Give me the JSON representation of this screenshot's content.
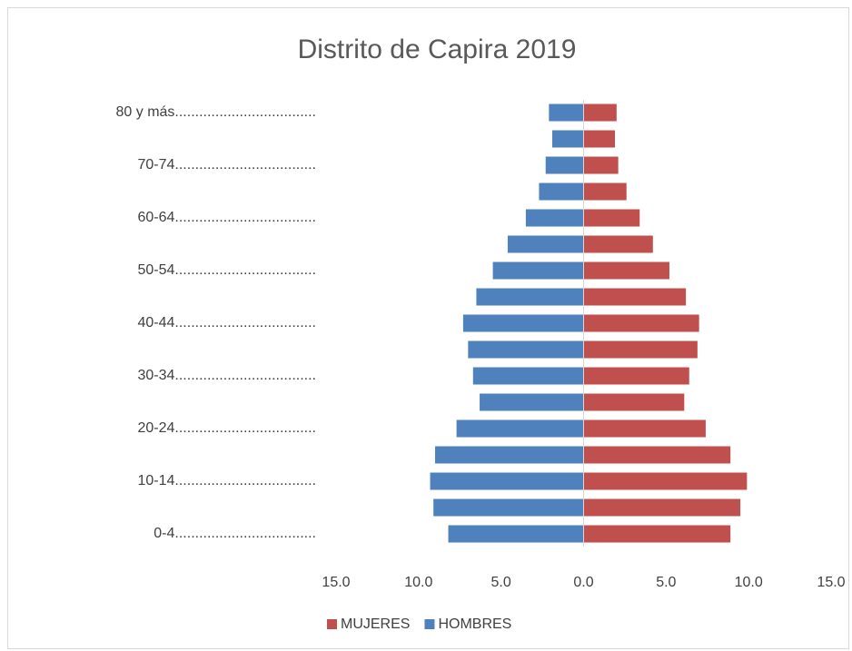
{
  "chart_data": {
    "type": "bar",
    "orientation": "horizontal",
    "stacked": true,
    "title": "Distrito de Capira 2019",
    "categories": [
      "0-4...................................",
      null,
      "10-14...................................",
      null,
      "20-24...................................",
      null,
      "30-34...................................",
      null,
      "40-44...................................",
      null,
      "50-54...................................",
      null,
      "60-64...................................",
      null,
      "70-74...................................",
      null,
      "80 y más..................................."
    ],
    "series": [
      {
        "name": "MUJERES",
        "color": "#c0504d",
        "values": [
          8.9,
          9.5,
          9.9,
          8.9,
          7.4,
          6.1,
          6.4,
          6.9,
          7.0,
          6.2,
          5.2,
          4.2,
          3.4,
          2.6,
          2.1,
          1.9,
          2.0
        ]
      },
      {
        "name": "HOMBRES",
        "color": "#4f81bd",
        "values": [
          -8.2,
          -9.1,
          -9.3,
          -9.0,
          -7.7,
          -6.3,
          -6.7,
          -7.0,
          -7.3,
          -6.5,
          -5.5,
          -4.6,
          -3.5,
          -2.7,
          -2.3,
          -1.9,
          -2.1
        ]
      }
    ],
    "xlim": [
      -15,
      15
    ],
    "xticks": [
      {
        "value": -15,
        "label": "15.0"
      },
      {
        "value": -10,
        "label": "10.0"
      },
      {
        "value": -5,
        "label": "5.0"
      },
      {
        "value": 0,
        "label": "0.0"
      },
      {
        "value": 5,
        "label": "5.0"
      },
      {
        "value": 10,
        "label": "10.0"
      },
      {
        "value": 15,
        "label": "15.0"
      }
    ],
    "legend": "bottom"
  }
}
